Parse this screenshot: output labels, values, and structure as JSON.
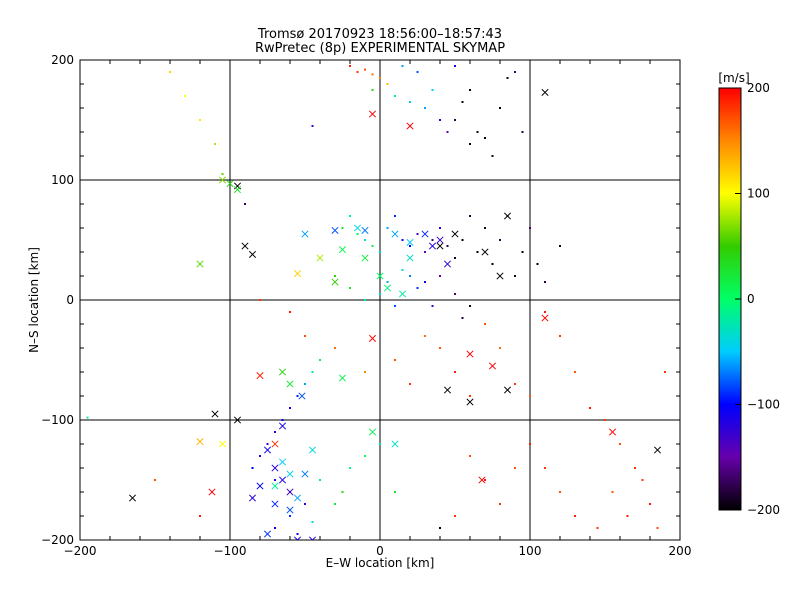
{
  "chart_data": {
    "type": "scatter",
    "title": "Tromsø 20170923 18:56:00–18:57:43",
    "subtitle": "RwPretec (8p) EXPERIMENTAL SKYMAP",
    "xlabel": "E–W location [km]",
    "ylabel": "N–S location [km]",
    "xlim": [
      -200,
      200
    ],
    "ylim": [
      -200,
      200
    ],
    "xticks": [
      "−200",
      "−100",
      "0",
      "100",
      "200"
    ],
    "yticks": [
      "−200",
      "−100",
      "0",
      "100",
      "200"
    ],
    "grid": true,
    "colorbar": {
      "label": "[m/s]",
      "range": [
        -200,
        200
      ],
      "ticks": [
        "200",
        "100",
        "0",
        "−100",
        "−200"
      ],
      "colormap": [
        "#000000",
        "#6600aa",
        "#0000ff",
        "#00ccff",
        "#00ff66",
        "#33cc00",
        "#ffff00",
        "#ff8800",
        "#ff0000"
      ]
    },
    "series": [
      {
        "marker": "dot",
        "points": [
          [
            -20,
            195,
            190
          ],
          [
            -15,
            190,
            180
          ],
          [
            -10,
            192,
            170
          ],
          [
            -5,
            188,
            160
          ],
          [
            0,
            185,
            150
          ],
          [
            5,
            180,
            130
          ],
          [
            10,
            170,
            -20
          ],
          [
            20,
            165,
            -40
          ],
          [
            30,
            160,
            -60
          ],
          [
            35,
            175,
            -50
          ],
          [
            40,
            150,
            -120
          ],
          [
            45,
            140,
            -150
          ],
          [
            50,
            150,
            -180
          ],
          [
            55,
            165,
            -190
          ],
          [
            60,
            130,
            -200
          ],
          [
            65,
            140,
            -190
          ],
          [
            70,
            135,
            -200
          ],
          [
            75,
            120,
            -190
          ],
          [
            80,
            160,
            -200
          ],
          [
            85,
            185,
            -190
          ],
          [
            90,
            190,
            -170
          ],
          [
            95,
            140,
            -180
          ],
          [
            60,
            175,
            -200
          ],
          [
            50,
            195,
            -120
          ],
          [
            25,
            190,
            -80
          ],
          [
            15,
            195,
            -60
          ],
          [
            -5,
            175,
            40
          ],
          [
            -45,
            145,
            -130
          ],
          [
            -140,
            190,
            120
          ],
          [
            -130,
            170,
            100
          ],
          [
            -120,
            150,
            110
          ],
          [
            -110,
            130,
            80
          ],
          [
            -105,
            105,
            60
          ],
          [
            -90,
            80,
            -170
          ],
          [
            -25,
            60,
            30
          ],
          [
            -20,
            70,
            -10
          ],
          [
            -15,
            55,
            0
          ],
          [
            -10,
            50,
            -30
          ],
          [
            -5,
            45,
            20
          ],
          [
            0,
            40,
            -40
          ],
          [
            5,
            60,
            -60
          ],
          [
            10,
            70,
            -90
          ],
          [
            15,
            50,
            -110
          ],
          [
            20,
            45,
            -100
          ],
          [
            25,
            55,
            -140
          ],
          [
            30,
            40,
            -150
          ],
          [
            35,
            50,
            -170
          ],
          [
            40,
            60,
            -120
          ],
          [
            45,
            45,
            -180
          ],
          [
            50,
            35,
            -190
          ],
          [
            55,
            50,
            -200
          ],
          [
            60,
            70,
            -180
          ],
          [
            65,
            40,
            -200
          ],
          [
            70,
            60,
            -190
          ],
          [
            75,
            30,
            -200
          ],
          [
            80,
            50,
            -180
          ],
          [
            85,
            70,
            -200
          ],
          [
            90,
            20,
            -190
          ],
          [
            95,
            40,
            -200
          ],
          [
            100,
            60,
            -170
          ],
          [
            105,
            30,
            -200
          ],
          [
            110,
            15,
            -180
          ],
          [
            120,
            45,
            -200
          ],
          [
            -30,
            20,
            50
          ],
          [
            -20,
            10,
            30
          ],
          [
            -10,
            0,
            -20
          ],
          [
            0,
            5,
            -40
          ],
          [
            5,
            15,
            -60
          ],
          [
            10,
            -5,
            -80
          ],
          [
            15,
            25,
            -30
          ],
          [
            20,
            20,
            -70
          ],
          [
            25,
            10,
            -90
          ],
          [
            30,
            15,
            -110
          ],
          [
            35,
            -5,
            -130
          ],
          [
            40,
            20,
            -150
          ],
          [
            50,
            5,
            -160
          ],
          [
            55,
            -15,
            -180
          ],
          [
            60,
            -5,
            -190
          ],
          [
            -60,
            -10,
            190
          ],
          [
            -80,
            0,
            180
          ],
          [
            -50,
            -30,
            170
          ],
          [
            -30,
            -40,
            160
          ],
          [
            -10,
            -60,
            150
          ],
          [
            10,
            -50,
            170
          ],
          [
            20,
            -70,
            180
          ],
          [
            30,
            -30,
            160
          ],
          [
            40,
            -40,
            170
          ],
          [
            50,
            -60,
            190
          ],
          [
            60,
            -80,
            180
          ],
          [
            70,
            -20,
            170
          ],
          [
            80,
            -40,
            160
          ],
          [
            90,
            -70,
            180
          ],
          [
            100,
            -80,
            170
          ],
          [
            110,
            -10,
            190
          ],
          [
            120,
            -30,
            180
          ],
          [
            130,
            -60,
            170
          ],
          [
            150,
            -100,
            180
          ],
          [
            140,
            -90,
            190
          ],
          [
            160,
            -120,
            170
          ],
          [
            170,
            -140,
            180
          ],
          [
            180,
            -170,
            190
          ],
          [
            190,
            -60,
            180
          ],
          [
            185,
            -190,
            170
          ],
          [
            175,
            -150,
            180
          ],
          [
            165,
            -180,
            190
          ],
          [
            155,
            -160,
            170
          ],
          [
            145,
            -190,
            180
          ],
          [
            130,
            -180,
            190
          ],
          [
            120,
            -160,
            170
          ],
          [
            110,
            -140,
            180
          ],
          [
            100,
            -120,
            190
          ],
          [
            90,
            -140,
            170
          ],
          [
            80,
            -170,
            180
          ],
          [
            70,
            -150,
            190
          ],
          [
            60,
            -130,
            170
          ],
          [
            50,
            -180,
            180
          ],
          [
            40,
            -190,
            -200
          ],
          [
            -40,
            -50,
            10
          ],
          [
            -45,
            -60,
            -20
          ],
          [
            -50,
            -70,
            -60
          ],
          [
            -55,
            -80,
            -90
          ],
          [
            -60,
            -90,
            -110
          ],
          [
            -65,
            -100,
            -100
          ],
          [
            -70,
            -110,
            -120
          ],
          [
            -75,
            -120,
            -130
          ],
          [
            -80,
            -130,
            -110
          ],
          [
            -85,
            -140,
            -100
          ],
          [
            -70,
            -150,
            -120
          ],
          [
            -60,
            -160,
            -130
          ],
          [
            -50,
            -170,
            -110
          ],
          [
            -60,
            -180,
            -90
          ],
          [
            -70,
            -190,
            -100
          ],
          [
            -55,
            -195,
            -120
          ],
          [
            -45,
            -185,
            -40
          ],
          [
            -40,
            -150,
            -20
          ],
          [
            -30,
            -170,
            20
          ],
          [
            -25,
            -160,
            40
          ],
          [
            -20,
            -140,
            -10
          ],
          [
            -10,
            -130,
            0
          ],
          [
            0,
            -120,
            -20
          ],
          [
            10,
            -160,
            30
          ],
          [
            -195,
            -98,
            -20
          ],
          [
            -150,
            -150,
            170
          ],
          [
            -120,
            -180,
            190
          ]
        ]
      },
      {
        "marker": "x",
        "points": [
          [
            110,
            173,
            -200
          ],
          [
            -95,
            95,
            -200
          ],
          [
            -90,
            45,
            -200
          ],
          [
            -85,
            38,
            -200
          ],
          [
            -110,
            -95,
            -200
          ],
          [
            -95,
            -100,
            -200
          ],
          [
            -165,
            -165,
            -200
          ],
          [
            185,
            -125,
            -200
          ],
          [
            60,
            -85,
            -200
          ],
          [
            85,
            -75,
            -200
          ],
          [
            50,
            55,
            -200
          ],
          [
            40,
            45,
            -200
          ],
          [
            70,
            40,
            -200
          ],
          [
            80,
            20,
            -200
          ],
          [
            45,
            -75,
            -200
          ],
          [
            85,
            70,
            -200
          ],
          [
            -5,
            155,
            200
          ],
          [
            20,
            145,
            200
          ],
          [
            -112,
            -160,
            200
          ],
          [
            -70,
            -120,
            180
          ],
          [
            -5,
            -32,
            200
          ],
          [
            110,
            -15,
            200
          ],
          [
            60,
            -45,
            200
          ],
          [
            75,
            -55,
            200
          ],
          [
            68,
            -150,
            200
          ],
          [
            155,
            -110,
            200
          ],
          [
            -80,
            -63,
            190
          ],
          [
            -120,
            -118,
            130
          ],
          [
            -105,
            -120,
            100
          ],
          [
            -55,
            22,
            120
          ],
          [
            -120,
            30,
            60
          ],
          [
            -105,
            100,
            70
          ],
          [
            -30,
            15,
            50
          ],
          [
            -40,
            35,
            80
          ],
          [
            -100,
            97,
            40
          ],
          [
            -95,
            92,
            30
          ],
          [
            -25,
            42,
            10
          ],
          [
            -10,
            35,
            20
          ],
          [
            0,
            20,
            0
          ],
          [
            5,
            10,
            -10
          ],
          [
            15,
            5,
            -20
          ],
          [
            20,
            35,
            -30
          ],
          [
            -15,
            60,
            -40
          ],
          [
            -60,
            -70,
            20
          ],
          [
            -65,
            -60,
            40
          ],
          [
            -50,
            55,
            -60
          ],
          [
            -30,
            58,
            -80
          ],
          [
            -10,
            58,
            -70
          ],
          [
            10,
            55,
            -60
          ],
          [
            20,
            48,
            -50
          ],
          [
            30,
            55,
            -90
          ],
          [
            35,
            45,
            -110
          ],
          [
            40,
            50,
            -130
          ],
          [
            45,
            30,
            -120
          ],
          [
            -75,
            -125,
            -100
          ],
          [
            -70,
            -140,
            -120
          ],
          [
            -65,
            -150,
            -110
          ],
          [
            -60,
            -160,
            -130
          ],
          [
            -70,
            -170,
            -90
          ],
          [
            -60,
            -175,
            -80
          ],
          [
            -55,
            -165,
            -60
          ],
          [
            -80,
            -155,
            -100
          ],
          [
            -85,
            -165,
            -120
          ],
          [
            -50,
            -145,
            -70
          ],
          [
            -65,
            -135,
            -50
          ],
          [
            -45,
            -125,
            -40
          ],
          [
            -55,
            -200,
            -110
          ],
          [
            -45,
            -200,
            -120
          ],
          [
            -75,
            -195,
            -90
          ],
          [
            -52,
            -80,
            -80
          ],
          [
            -65,
            -105,
            -110
          ],
          [
            10,
            -120,
            -30
          ],
          [
            -5,
            -110,
            10
          ],
          [
            -25,
            -65,
            10
          ],
          [
            -70,
            -155,
            -20
          ],
          [
            -60,
            -145,
            -40
          ]
        ]
      }
    ]
  }
}
